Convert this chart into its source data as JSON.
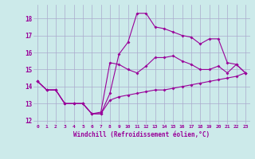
{
  "title": "",
  "xlabel": "Windchill (Refroidissement éolien,°C)",
  "bg_color": "#cceaea",
  "grid_color": "#aaaacc",
  "line_color": "#990099",
  "xlim": [
    -0.5,
    23.5
  ],
  "ylim": [
    11.8,
    18.8
  ],
  "xticks": [
    0,
    1,
    2,
    3,
    4,
    5,
    6,
    7,
    8,
    9,
    10,
    11,
    12,
    13,
    14,
    15,
    16,
    17,
    18,
    19,
    20,
    21,
    22,
    23
  ],
  "yticks": [
    12,
    13,
    14,
    15,
    16,
    17,
    18
  ],
  "line1": [
    14.3,
    13.8,
    13.8,
    13.0,
    13.0,
    13.0,
    12.4,
    12.4,
    13.6,
    15.9,
    16.6,
    18.3,
    18.3,
    17.5,
    17.4,
    17.2,
    17.0,
    16.9,
    16.5,
    16.8,
    16.8,
    15.4,
    15.3,
    14.8
  ],
  "line2": [
    14.3,
    13.8,
    13.8,
    13.0,
    13.0,
    13.0,
    12.4,
    12.5,
    15.4,
    15.3,
    15.0,
    14.8,
    15.2,
    15.7,
    15.7,
    15.8,
    15.5,
    15.3,
    15.0,
    15.0,
    15.2,
    14.8,
    15.3,
    14.8
  ],
  "line3": [
    14.3,
    13.8,
    13.8,
    13.0,
    13.0,
    13.0,
    12.4,
    12.4,
    13.2,
    13.4,
    13.5,
    13.6,
    13.7,
    13.8,
    13.8,
    13.9,
    14.0,
    14.1,
    14.2,
    14.3,
    14.4,
    14.5,
    14.6,
    14.8
  ]
}
